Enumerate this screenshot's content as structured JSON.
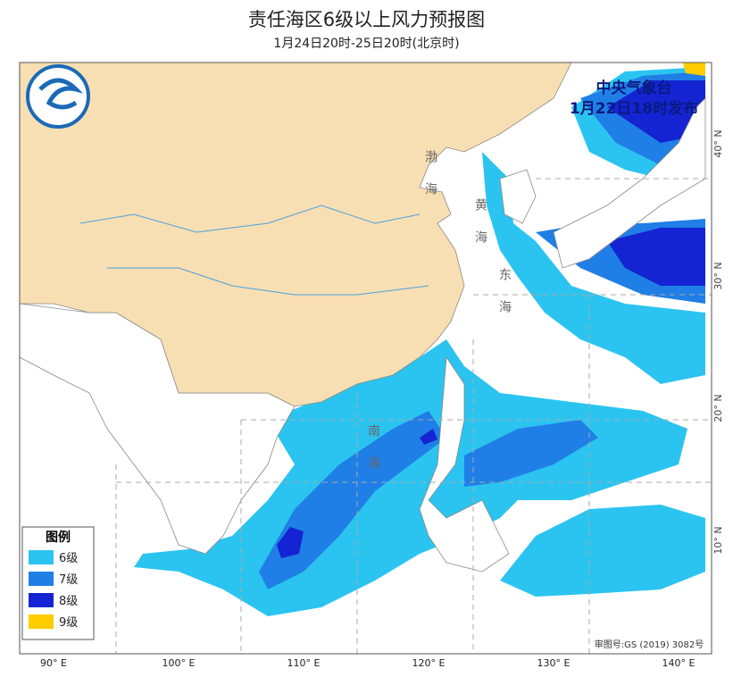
{
  "header": {
    "title": "责任海区6级以上风力预报图",
    "subtitle": "1月24日20时-25日20时(北京时)"
  },
  "issuer": {
    "name": "中央气象台",
    "time": "1月22日18时发布"
  },
  "legend": {
    "title": "图例",
    "items": [
      {
        "label": "6级",
        "color": "#2bc4f0"
      },
      {
        "label": "7级",
        "color": "#1f7fe6"
      },
      {
        "label": "8级",
        "color": "#1424d2"
      },
      {
        "label": "9级",
        "color": "#ffcc00"
      }
    ]
  },
  "axes": {
    "lon_labels": [
      "90° E",
      "100° E",
      "110° E",
      "120° E",
      "130° E",
      "140° E"
    ],
    "lat_labels": [
      "10° N",
      "20° N",
      "30° N",
      "40° N"
    ]
  },
  "sea_labels": [
    "渤海",
    "黄海",
    "东海",
    "南海"
  ],
  "approval": "审图号:GS (2019) 3082号"
}
